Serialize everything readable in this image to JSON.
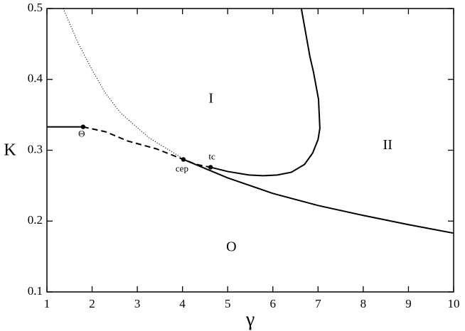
{
  "chart_data": {
    "type": "line",
    "x_label": "γ",
    "y_label": "K",
    "xlim": [
      1,
      10
    ],
    "ylim": [
      0.1,
      0.5
    ],
    "xticks": [
      1,
      2,
      3,
      4,
      5,
      6,
      7,
      8,
      9,
      10
    ],
    "yticks": [
      0.1,
      0.2,
      0.3,
      0.4,
      0.5
    ],
    "series": [
      {
        "style": "solid",
        "color": "#000000",
        "x": [
          1,
          1.8
        ],
        "values": [
          0.333,
          0.333
        ]
      },
      {
        "style": "dashed",
        "color": "#000000",
        "x": [
          1.8,
          2.3,
          2.79,
          3.42,
          4.02,
          4.3,
          4.62
        ],
        "values": [
          0.333,
          0.326,
          0.313,
          0.302,
          0.287,
          0.28,
          0.276
        ]
      },
      {
        "style": "solid",
        "color": "#000000",
        "x": [
          4.02,
          5,
          6,
          7,
          8,
          9,
          10
        ],
        "values": [
          0.287,
          0.261,
          0.239,
          0.222,
          0.208,
          0.195,
          0.183
        ]
      },
      {
        "style": "solid",
        "color": "#000000",
        "x": [
          4.62,
          5.0,
          5.47,
          5.78,
          6.1,
          6.41,
          6.7,
          6.88,
          7.0,
          7.04,
          7.01,
          6.9,
          6.82,
          6.63
        ],
        "values": [
          0.276,
          0.27,
          0.265,
          0.264,
          0.265,
          0.269,
          0.28,
          0.296,
          0.315,
          0.331,
          0.372,
          0.41,
          0.432,
          0.5
        ]
      },
      {
        "style": "dotted",
        "color": "#000000",
        "x": [
          1.36,
          1.7,
          2.01,
          2.3,
          2.64,
          3.27,
          3.89,
          4.02
        ],
        "values": [
          0.5,
          0.45,
          0.412,
          0.38,
          0.352,
          0.317,
          0.293,
          0.287
        ]
      }
    ],
    "points": [
      {
        "label": "Θ",
        "x": 1.8,
        "y": 0.333
      },
      {
        "label": "cep",
        "x": 4.02,
        "y": 0.287
      },
      {
        "label": "tc",
        "x": 4.62,
        "y": 0.276
      }
    ],
    "annotations": [
      {
        "text": "I",
        "x": 4.63,
        "y": 0.372
      },
      {
        "text": "II",
        "x": 8.54,
        "y": 0.306
      },
      {
        "text": "O",
        "x": 5.08,
        "y": 0.162
      }
    ]
  }
}
